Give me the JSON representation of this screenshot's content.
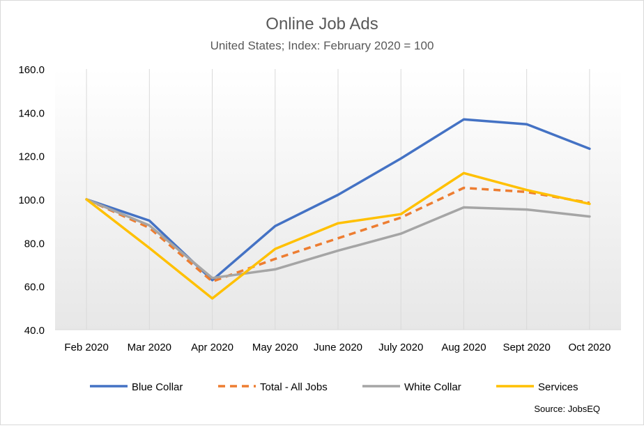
{
  "chart_data": {
    "type": "line",
    "title": "Online Job Ads",
    "subtitle": "United States; Index: February 2020 = 100",
    "categories": [
      "Feb 2020",
      "Mar 2020",
      "Apr 2020",
      "May 2020",
      "June 2020",
      "July 2020",
      "Aug 2020",
      "Sept 2020",
      "Oct 2020"
    ],
    "yticks": [
      "40.0",
      "60.0",
      "80.0",
      "100.0",
      "120.0",
      "140.0",
      "160.0"
    ],
    "ylim": [
      40,
      160
    ],
    "grid": "vertical",
    "legend_position": "bottom",
    "series": [
      {
        "name": "Blue Collar",
        "color": "#4472c4",
        "dash": "solid",
        "values": [
          100,
          90.2,
          62.8,
          87.7,
          102.1,
          118.8,
          136.8,
          134.6,
          123.3
        ]
      },
      {
        "name": "Total - All Jobs",
        "color": "#ed7d31",
        "dash": "dashed",
        "values": [
          100,
          86.9,
          62.2,
          72.6,
          82.1,
          91.6,
          105.3,
          103.4,
          98.4
        ]
      },
      {
        "name": "White Collar",
        "color": "#a5a5a5",
        "dash": "solid",
        "values": [
          100,
          88.0,
          63.8,
          67.8,
          76.4,
          84.2,
          96.3,
          95.3,
          92.1
        ]
      },
      {
        "name": "Services",
        "color": "#ffc000",
        "dash": "solid",
        "values": [
          100,
          77.6,
          54.4,
          77.2,
          89.0,
          93.2,
          112.1,
          104.3,
          97.9
        ]
      }
    ],
    "source": "Source: JobsEQ"
  }
}
